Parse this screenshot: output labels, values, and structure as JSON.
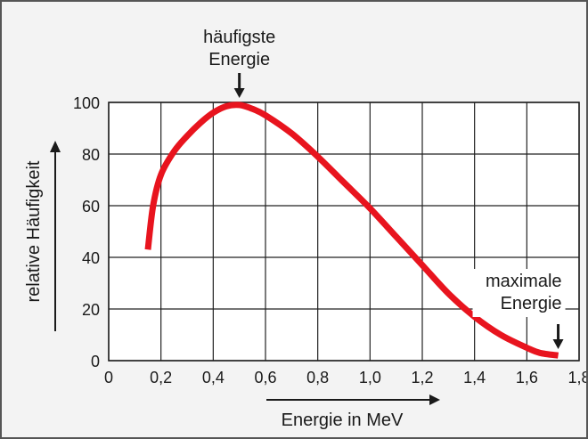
{
  "chart_data": {
    "type": "line",
    "xlabel": "Energie in MeV",
    "ylabel": "relative Häufigkeit",
    "xlim": [
      0,
      1.8
    ],
    "ylim": [
      0,
      100
    ],
    "x_ticks": [
      "0",
      "0,2",
      "0,4",
      "0,6",
      "0,8",
      "1,0",
      "1,2",
      "1,4",
      "1,6",
      "1,8"
    ],
    "y_ticks": [
      "0",
      "20",
      "40",
      "60",
      "80",
      "100"
    ],
    "grid": true,
    "series": [
      {
        "color": "#e8141e",
        "x": [
          0.15,
          0.17,
          0.2,
          0.25,
          0.3,
          0.35,
          0.4,
          0.45,
          0.5,
          0.55,
          0.6,
          0.7,
          0.8,
          0.9,
          1.0,
          1.1,
          1.2,
          1.3,
          1.4,
          1.5,
          1.6,
          1.65,
          1.72
        ],
        "y": [
          43,
          60,
          72,
          81,
          87,
          92,
          96,
          98.5,
          99,
          97.5,
          95,
          88,
          79,
          69,
          59,
          48,
          37,
          26,
          17,
          10,
          5,
          3,
          2
        ]
      }
    ],
    "annotations": [
      {
        "label_lines": [
          "häufigste",
          "Energie"
        ],
        "x": 0.5,
        "y": 99
      },
      {
        "label_lines": [
          "maximale",
          "Energie"
        ],
        "x": 1.72,
        "y": 2
      }
    ]
  }
}
